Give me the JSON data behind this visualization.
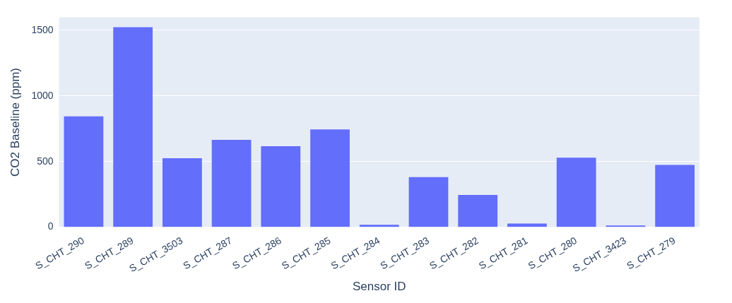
{
  "chart_data": {
    "type": "bar",
    "xlabel": "Sensor ID",
    "ylabel": "CO2 Baseline (ppm)",
    "categories": [
      "S_CHT_290",
      "S_CHT_289",
      "S_CHT_3503",
      "S_CHT_287",
      "S_CHT_286",
      "S_CHT_285",
      "S_CHT_284",
      "S_CHT_283",
      "S_CHT_282",
      "S_CHT_281",
      "S_CHT_280",
      "S_CHT_3423",
      "S_CHT_279"
    ],
    "values": [
      845,
      1524,
      525,
      666,
      617,
      745,
      18,
      382,
      245,
      28,
      529,
      13,
      475
    ],
    "color": "#636efa",
    "ylim": [
      0,
      1600
    ],
    "yticks": [
      0,
      500,
      1000,
      1500
    ],
    "grid": "y",
    "legend": false
  }
}
